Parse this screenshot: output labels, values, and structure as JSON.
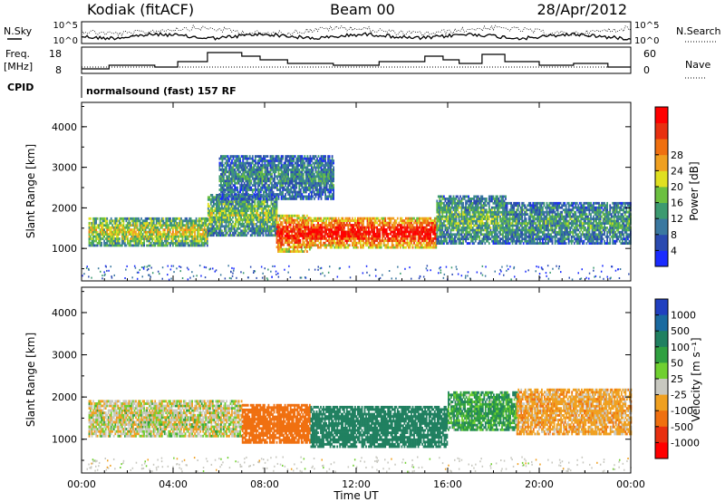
{
  "header": {
    "station": "Kodiak (fitACF)",
    "beam": "Beam 00",
    "date": "28/Apr/2012"
  },
  "top_panels": {
    "nsky_label": "N.Sky",
    "nsearch_label": "N.Search",
    "freq_label_line1": "Freq.",
    "freq_label_line2": "[MHz]",
    "nave_label": "Nave",
    "cpid_label": "CPID",
    "cpid_value": "normalsound (fast) 157 RF",
    "noise_ticks": [
      "10^5",
      "10^0"
    ],
    "freq_ticks": [
      "18",
      "8"
    ],
    "nave_ticks": [
      "60",
      "0"
    ]
  },
  "chart_data": [
    {
      "type": "heatmap",
      "panel": "power",
      "xlabel": "",
      "ylabel": "Slant Range [km]",
      "x_ticks": [],
      "y_ticks": [
        "1000",
        "2000",
        "3000",
        "4000"
      ],
      "xlim": [
        0,
        24
      ],
      "ylim": [
        200,
        4600
      ],
      "colorbar": {
        "label": "Power [dB]",
        "ticks": [
          "4",
          "8",
          "12",
          "16",
          "20",
          "24",
          "28"
        ],
        "colors": [
          "#1a2bff",
          "#2a4ab0",
          "#3a78a0",
          "#3c9a70",
          "#6cc040",
          "#e0e020",
          "#f0a020",
          "#f07010",
          "#e83010",
          "#ff0000"
        ]
      },
      "echo_bands": [
        {
          "t_start": 0.3,
          "t_end": 5.5,
          "r_low": 1050,
          "r_high": 1750,
          "level": 0.55
        },
        {
          "t_start": 5.5,
          "t_end": 8.5,
          "r_low": 1300,
          "r_high": 2300,
          "level": 0.45
        },
        {
          "t_start": 8.5,
          "t_end": 10.0,
          "r_low": 900,
          "r_high": 1800,
          "level": 0.9
        },
        {
          "t_start": 10.0,
          "t_end": 15.5,
          "r_low": 1000,
          "r_high": 1750,
          "level": 0.95
        },
        {
          "t_start": 15.5,
          "t_end": 18.5,
          "r_low": 1100,
          "r_high": 2300,
          "level": 0.4
        },
        {
          "t_start": 18.5,
          "t_end": 24.0,
          "r_low": 1100,
          "r_high": 2100,
          "level": 0.35
        },
        {
          "t_start": 6.0,
          "t_end": 11.0,
          "r_low": 2200,
          "r_high": 3300,
          "level": 0.3
        }
      ]
    },
    {
      "type": "heatmap",
      "panel": "velocity",
      "xlabel": "Time UT",
      "ylabel": "Slant Range [km]",
      "x_ticks": [
        "00:00",
        "04:00",
        "08:00",
        "12:00",
        "16:00",
        "20:00",
        "00:00"
      ],
      "y_ticks": [
        "1000",
        "2000",
        "3000",
        "4000"
      ],
      "xlim": [
        0,
        24
      ],
      "ylim": [
        200,
        4600
      ],
      "colorbar": {
        "label": "Velocity [m s⁻¹]",
        "ticks": [
          "1000",
          "500",
          "100",
          "50",
          "25",
          "-25",
          "-100",
          "-500",
          "-1000"
        ],
        "colors": [
          "#2040c0",
          "#1a6aa0",
          "#208060",
          "#30a040",
          "#70d030",
          "#c8c8c0",
          "#f0a020",
          "#f07010",
          "#e83010",
          "#ff0000"
        ]
      },
      "echo_bands": [
        {
          "t_start": 0.3,
          "t_end": 7.0,
          "r_low": 1050,
          "r_high": 1900,
          "velocity": 0
        },
        {
          "t_start": 7.0,
          "t_end": 10.0,
          "r_low": 900,
          "r_high": 1800,
          "velocity": -300
        },
        {
          "t_start": 10.0,
          "t_end": 16.0,
          "r_low": 800,
          "r_high": 1750,
          "velocity": 200
        },
        {
          "t_start": 16.0,
          "t_end": 19.0,
          "r_low": 1200,
          "r_high": 2100,
          "velocity": 80
        },
        {
          "t_start": 19.0,
          "t_end": 24.0,
          "r_low": 1100,
          "r_high": 2200,
          "velocity": -60
        }
      ]
    }
  ]
}
